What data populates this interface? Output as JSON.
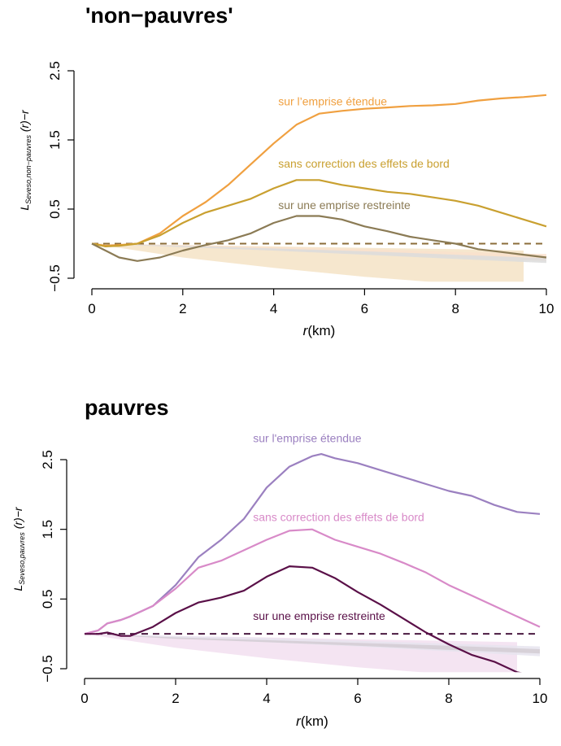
{
  "chart_data": [
    {
      "type": "line",
      "title": "'non−pauvres'",
      "xlabel_var": "r",
      "xlabel_unit": "(km)",
      "ylabel_main": "L",
      "ylabel_sub": "Seveso,non−pauvres",
      "ylabel_rest": " (r)−r",
      "xlim": [
        0,
        10
      ],
      "ylim": [
        -0.5,
        2.5
      ],
      "x_ticks": [
        0,
        2,
        4,
        6,
        8,
        10
      ],
      "x_tick_labels": [
        "0",
        "2",
        "4",
        "6",
        "8",
        "10"
      ],
      "y_ticks": [
        -0.5,
        0.5,
        1.5,
        2.5
      ],
      "y_tick_labels": [
        "−0.5",
        "0.5",
        "1.5",
        "2.5"
      ],
      "reference_line": {
        "y": 0,
        "color": "#8b6d3a",
        "style": "dashed"
      },
      "envelopes": [
        {
          "color": "#f4e3c6",
          "x": [
            0,
            2,
            4,
            6,
            8,
            9.5
          ],
          "upper": [
            0.0,
            -0.02,
            -0.04,
            -0.06,
            -0.08,
            -0.1
          ],
          "lower": [
            0.0,
            -0.2,
            -0.35,
            -0.48,
            -0.58,
            -0.65
          ]
        },
        {
          "color": "#f9e0cc",
          "x": [
            0,
            2,
            4,
            6,
            8,
            10
          ],
          "upper": [
            0.0,
            -0.02,
            -0.05,
            -0.08,
            -0.12,
            -0.15
          ],
          "lower": [
            0.0,
            -0.05,
            -0.1,
            -0.15,
            -0.2,
            -0.25
          ]
        },
        {
          "color": "#dcdcdc",
          "x": [
            0,
            2,
            4,
            6,
            8,
            10
          ],
          "upper": [
            0.0,
            -0.03,
            -0.07,
            -0.11,
            -0.16,
            -0.21
          ],
          "lower": [
            0.0,
            -0.05,
            -0.1,
            -0.16,
            -0.22,
            -0.28
          ]
        }
      ],
      "series": [
        {
          "name": "sur l’emprise étendue",
          "color": "#f0a040",
          "x": [
            0,
            0.3,
            0.6,
            1.0,
            1.5,
            2.0,
            2.5,
            3.0,
            3.5,
            4.0,
            4.5,
            5.0,
            5.5,
            6.0,
            6.5,
            7.0,
            7.5,
            8.0,
            8.5,
            9.0,
            9.5,
            10.0
          ],
          "y": [
            0.0,
            -0.03,
            -0.02,
            0.0,
            0.15,
            0.4,
            0.6,
            0.85,
            1.15,
            1.45,
            1.72,
            1.88,
            1.92,
            1.95,
            1.97,
            1.99,
            2.0,
            2.02,
            2.07,
            2.1,
            2.12,
            2.15
          ]
        },
        {
          "name": "sans correction des effets de bord",
          "color": "#c9a030",
          "x": [
            0,
            0.3,
            0.6,
            1.0,
            1.5,
            2.0,
            2.5,
            3.0,
            3.5,
            4.0,
            4.5,
            5.0,
            5.5,
            6.0,
            6.5,
            7.0,
            7.5,
            8.0,
            8.5,
            9.0,
            9.5,
            10.0
          ],
          "y": [
            0.0,
            -0.04,
            -0.03,
            0.0,
            0.12,
            0.3,
            0.45,
            0.55,
            0.65,
            0.8,
            0.92,
            0.92,
            0.85,
            0.8,
            0.75,
            0.72,
            0.67,
            0.62,
            0.55,
            0.45,
            0.35,
            0.25
          ]
        },
        {
          "name": "sur une emprise restreinte",
          "color": "#8b7b55",
          "x": [
            0,
            0.3,
            0.6,
            1.0,
            1.5,
            2.0,
            2.5,
            3.0,
            3.5,
            4.0,
            4.5,
            5.0,
            5.5,
            6.0,
            6.5,
            7.0,
            7.5,
            8.0,
            8.5,
            9.0,
            9.5,
            10.0
          ],
          "y": [
            0.0,
            -0.1,
            -0.2,
            -0.25,
            -0.2,
            -0.1,
            -0.02,
            0.05,
            0.15,
            0.3,
            0.4,
            0.4,
            0.35,
            0.25,
            0.18,
            0.1,
            0.05,
            0.0,
            -0.08,
            -0.12,
            -0.16,
            -0.2
          ]
        }
      ],
      "annotations": [
        {
          "text": "sur l’emprise étendue",
          "x": 4.1,
          "y": 2.0,
          "color": "#f0a040"
        },
        {
          "text": "sans correction des effets de bord",
          "x": 4.1,
          "y": 1.1,
          "color": "#c9a030"
        },
        {
          "text": "sur une emprise restreinte",
          "x": 4.1,
          "y": 0.5,
          "color": "#8b7b55"
        }
      ]
    },
    {
      "type": "line",
      "title": "pauvres",
      "xlabel_var": "r",
      "xlabel_unit": "(km)",
      "ylabel_main": "L",
      "ylabel_sub": "Seveso,pauvres",
      "ylabel_rest": " (r)−r",
      "xlim": [
        0,
        10
      ],
      "ylim": [
        -0.5,
        2.5
      ],
      "x_ticks": [
        0,
        2,
        4,
        6,
        8,
        10
      ],
      "x_tick_labels": [
        "0",
        "2",
        "4",
        "6",
        "8",
        "10"
      ],
      "y_ticks": [
        -0.5,
        0.5,
        1.5,
        2.5
      ],
      "y_tick_labels": [
        "−0.5",
        "0.5",
        "1.5",
        "2.5"
      ],
      "reference_line": {
        "y": 0,
        "color": "#4a1a40",
        "style": "dashed"
      },
      "envelopes": [
        {
          "color": "#f2dff0",
          "x": [
            0,
            2,
            4,
            6,
            8,
            9.5
          ],
          "upper": [
            0.0,
            -0.03,
            -0.05,
            -0.08,
            -0.1,
            -0.12
          ],
          "lower": [
            0.0,
            -0.2,
            -0.35,
            -0.48,
            -0.58,
            -0.65
          ]
        },
        {
          "color": "#e6e4ee",
          "x": [
            0,
            2,
            4,
            6,
            8,
            10
          ],
          "upper": [
            0.0,
            -0.03,
            -0.06,
            -0.1,
            -0.14,
            -0.18
          ],
          "lower": [
            0.0,
            -0.06,
            -0.12,
            -0.18,
            -0.25,
            -0.32
          ]
        },
        {
          "color": "#d4ccd4",
          "x": [
            0,
            2,
            4,
            6,
            8,
            10
          ],
          "upper": [
            0.0,
            -0.05,
            -0.09,
            -0.13,
            -0.17,
            -0.22
          ],
          "lower": [
            0.0,
            -0.07,
            -0.12,
            -0.17,
            -0.23,
            -0.28
          ]
        }
      ],
      "series": [
        {
          "name": "sur l'emprise étendue",
          "color": "#9b80c0",
          "x": [
            0,
            0.3,
            0.5,
            0.8,
            1.0,
            1.5,
            2.0,
            2.5,
            3.0,
            3.5,
            4.0,
            4.5,
            5.0,
            5.2,
            5.5,
            6.0,
            6.5,
            7.0,
            7.5,
            8.0,
            8.5,
            9.0,
            9.5,
            10.0
          ],
          "y": [
            0.0,
            0.05,
            0.15,
            0.2,
            0.25,
            0.4,
            0.7,
            1.1,
            1.35,
            1.65,
            2.1,
            2.4,
            2.55,
            2.58,
            2.52,
            2.45,
            2.35,
            2.25,
            2.15,
            2.05,
            1.98,
            1.85,
            1.75,
            1.72
          ]
        },
        {
          "name": "sans correction des effets de bord",
          "color": "#d88ac8",
          "x": [
            0,
            0.3,
            0.5,
            0.8,
            1.0,
            1.5,
            2.0,
            2.5,
            3.0,
            3.5,
            4.0,
            4.5,
            5.0,
            5.5,
            6.0,
            6.5,
            7.0,
            7.5,
            8.0,
            8.5,
            9.0,
            9.5,
            10.0
          ],
          "y": [
            0.0,
            0.05,
            0.15,
            0.2,
            0.25,
            0.4,
            0.65,
            0.95,
            1.05,
            1.2,
            1.35,
            1.48,
            1.5,
            1.35,
            1.25,
            1.15,
            1.02,
            0.88,
            0.7,
            0.55,
            0.4,
            0.25,
            0.1
          ]
        },
        {
          "name": "sur une emprise restreinte",
          "color": "#5a1048",
          "x": [
            0,
            0.3,
            0.5,
            0.8,
            1.0,
            1.5,
            2.0,
            2.5,
            3.0,
            3.5,
            4.0,
            4.5,
            5.0,
            5.5,
            6.0,
            6.5,
            7.0,
            7.5,
            8.0,
            8.5,
            9.0,
            9.5,
            10.0
          ],
          "y": [
            0.0,
            0.0,
            0.02,
            -0.03,
            -0.03,
            0.1,
            0.3,
            0.45,
            0.52,
            0.62,
            0.82,
            0.97,
            0.95,
            0.8,
            0.6,
            0.42,
            0.22,
            0.02,
            -0.15,
            -0.3,
            -0.4,
            -0.55,
            -0.62
          ]
        }
      ],
      "annotations": [
        {
          "text": "sur l'emprise étendue",
          "x": 3.7,
          "y": 2.75,
          "color": "#9b80c0"
        },
        {
          "text": "sans correction des effets de bord",
          "x": 3.7,
          "y": 1.62,
          "color": "#d88ac8"
        },
        {
          "text": "sur une emprise restreinte",
          "x": 3.7,
          "y": 0.2,
          "color": "#5a1048"
        }
      ]
    }
  ]
}
